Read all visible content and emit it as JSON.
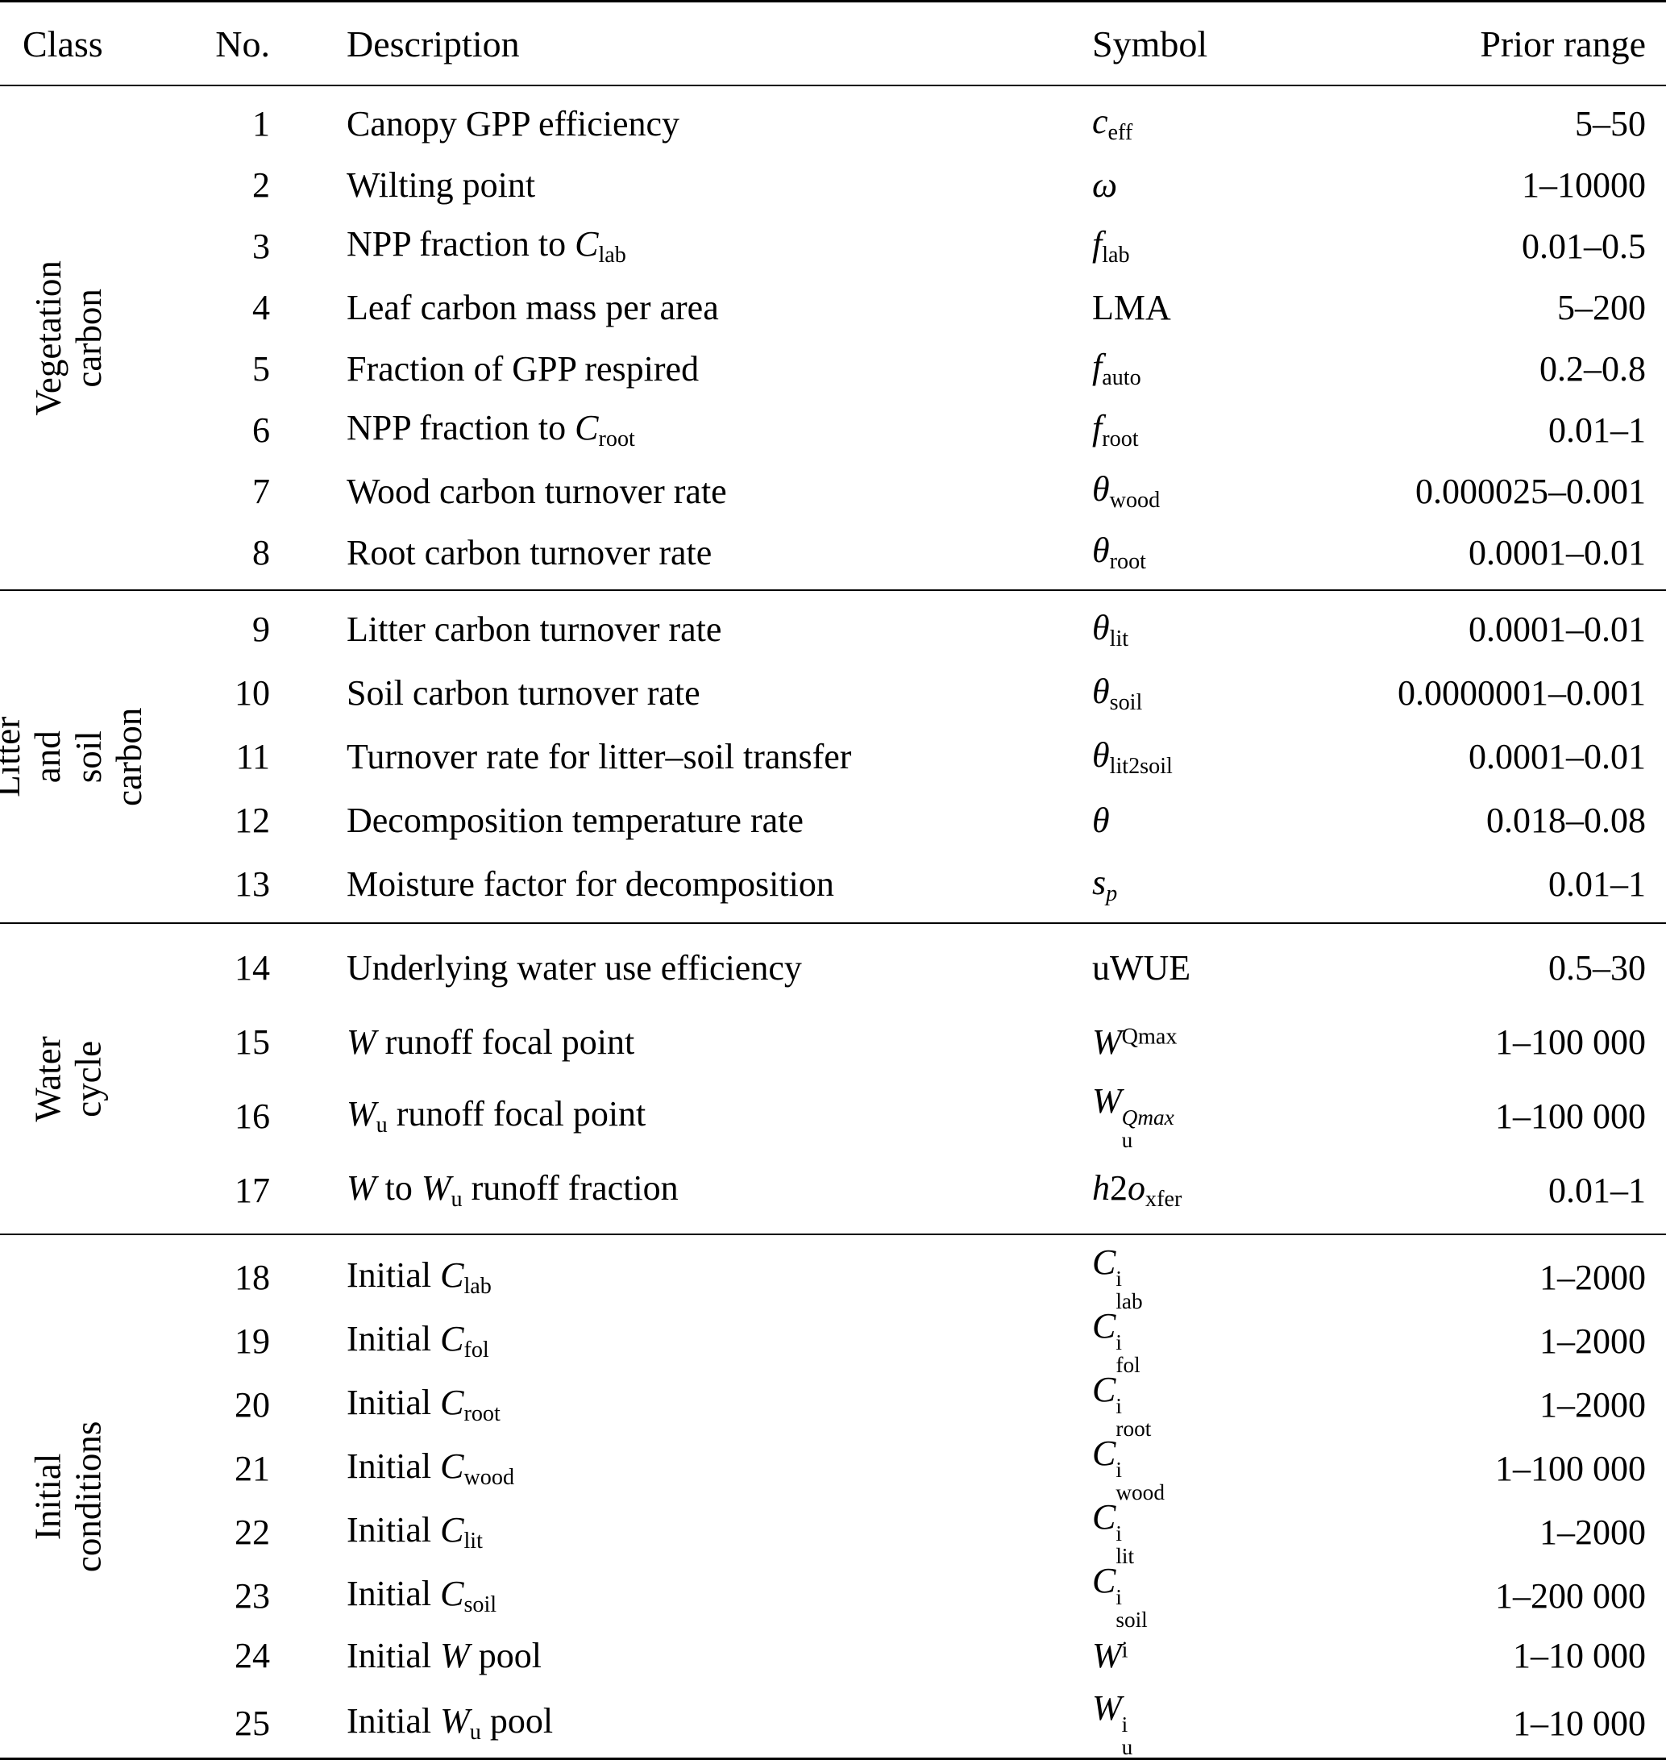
{
  "header": {
    "class": "Class",
    "no": "No.",
    "description": "Description",
    "symbol": "Symbol",
    "prior": "Prior range"
  },
  "groups": [
    {
      "label": "Vegetation carbon",
      "rows": [
        {
          "no": "1",
          "desc": [
            [
              "n",
              "Canopy GPP efficiency"
            ]
          ],
          "sym": [
            [
              "i",
              "c"
            ],
            [
              "sub",
              "eff"
            ]
          ],
          "prior": "5–50"
        },
        {
          "no": "2",
          "desc": [
            [
              "n",
              "Wilting point"
            ]
          ],
          "sym": [
            [
              "i",
              "ω"
            ]
          ],
          "prior": "1–10000"
        },
        {
          "no": "3",
          "desc": [
            [
              "n",
              "NPP fraction to "
            ],
            [
              "i",
              "C"
            ],
            [
              "sub",
              "lab"
            ]
          ],
          "sym": [
            [
              "i",
              "f"
            ],
            [
              "sub",
              "lab"
            ]
          ],
          "prior": "0.01–0.5"
        },
        {
          "no": "4",
          "desc": [
            [
              "n",
              "Leaf carbon mass per area"
            ]
          ],
          "sym": [
            [
              "n",
              "LMA"
            ]
          ],
          "prior": "5–200"
        },
        {
          "no": "5",
          "desc": [
            [
              "n",
              "Fraction of GPP respired"
            ]
          ],
          "sym": [
            [
              "i",
              "f"
            ],
            [
              "sub",
              "auto"
            ]
          ],
          "prior": "0.2–0.8"
        },
        {
          "no": "6",
          "desc": [
            [
              "n",
              "NPP fraction to "
            ],
            [
              "i",
              "C"
            ],
            [
              "sub",
              "root"
            ]
          ],
          "sym": [
            [
              "i",
              "f"
            ],
            [
              "sub",
              "root"
            ]
          ],
          "prior": "0.01–1"
        },
        {
          "no": "7",
          "desc": [
            [
              "n",
              "Wood carbon turnover rate"
            ]
          ],
          "sym": [
            [
              "i",
              "θ"
            ],
            [
              "sub",
              "wood"
            ]
          ],
          "prior": "0.000025–0.001"
        },
        {
          "no": "8",
          "desc": [
            [
              "n",
              "Root carbon turnover rate"
            ]
          ],
          "sym": [
            [
              "i",
              "θ"
            ],
            [
              "sub",
              "root"
            ]
          ],
          "prior": "0.0001–0.01"
        }
      ]
    },
    {
      "label": "Litter and\nsoil carbon",
      "rows": [
        {
          "no": "9",
          "desc": [
            [
              "n",
              "Litter carbon turnover rate"
            ]
          ],
          "sym": [
            [
              "i",
              "θ"
            ],
            [
              "sub",
              "lit"
            ]
          ],
          "prior": "0.0001–0.01"
        },
        {
          "no": "10",
          "desc": [
            [
              "n",
              "Soil carbon turnover rate"
            ]
          ],
          "sym": [
            [
              "i",
              "θ"
            ],
            [
              "sub",
              "soil"
            ]
          ],
          "prior": "0.0000001–0.001"
        },
        {
          "no": "11",
          "desc": [
            [
              "n",
              "Turnover rate for litter–soil transfer"
            ]
          ],
          "sym": [
            [
              "i",
              "θ"
            ],
            [
              "sub",
              "lit2soil"
            ]
          ],
          "prior": "0.0001–0.01"
        },
        {
          "no": "12",
          "desc": [
            [
              "n",
              "Decomposition temperature rate"
            ]
          ],
          "sym": [
            [
              "i",
              "θ"
            ]
          ],
          "prior": "0.018–0.08"
        },
        {
          "no": "13",
          "desc": [
            [
              "n",
              "Moisture factor for decomposition"
            ]
          ],
          "sym": [
            [
              "i",
              "s"
            ],
            [
              "isub",
              "p"
            ]
          ],
          "prior": "0.01–1"
        }
      ]
    },
    {
      "label": "Water cycle",
      "rows": [
        {
          "no": "14",
          "desc": [
            [
              "n",
              "Underlying water use efficiency"
            ]
          ],
          "sym": [
            [
              "n",
              "uWUE"
            ]
          ],
          "prior": "0.5–30"
        },
        {
          "no": "15",
          "desc": [
            [
              "i",
              "W"
            ],
            [
              "n",
              " runoff focal point"
            ]
          ],
          "sym": [
            [
              "i",
              "W"
            ],
            [
              "sup",
              "Qmax"
            ]
          ],
          "prior": "1–100 000"
        },
        {
          "no": "16",
          "desc": [
            [
              "i",
              "W"
            ],
            [
              "sub",
              "u"
            ],
            [
              "n",
              " runoff focal point"
            ]
          ],
          "sym": [
            [
              "i",
              "W"
            ],
            [
              "stki",
              "Qmax",
              "u"
            ]
          ],
          "prior": "1–100 000"
        },
        {
          "no": "17",
          "desc": [
            [
              "i",
              "W"
            ],
            [
              "n",
              " to "
            ],
            [
              "i",
              "W"
            ],
            [
              "sub",
              "u"
            ],
            [
              "n",
              " runoff fraction"
            ]
          ],
          "sym": [
            [
              "i",
              "h"
            ],
            [
              "n",
              "2"
            ],
            [
              "i",
              "o"
            ],
            [
              "sub",
              "xfer"
            ]
          ],
          "prior": "0.01–1"
        }
      ]
    },
    {
      "label": "Initial conditions",
      "rows": [
        {
          "no": "18",
          "desc": [
            [
              "n",
              "Initial "
            ],
            [
              "i",
              "C"
            ],
            [
              "sub",
              "lab"
            ]
          ],
          "sym": [
            [
              "i",
              "C"
            ],
            [
              "stk",
              "i",
              "lab"
            ]
          ],
          "prior": "1–2000"
        },
        {
          "no": "19",
          "desc": [
            [
              "n",
              "Initial "
            ],
            [
              "i",
              "C"
            ],
            [
              "sub",
              "fol"
            ]
          ],
          "sym": [
            [
              "i",
              "C"
            ],
            [
              "stk",
              "i",
              "fol"
            ]
          ],
          "prior": "1–2000"
        },
        {
          "no": "20",
          "desc": [
            [
              "n",
              "Initial "
            ],
            [
              "i",
              "C"
            ],
            [
              "sub",
              "root"
            ]
          ],
          "sym": [
            [
              "i",
              "C"
            ],
            [
              "stk",
              "i",
              "root"
            ]
          ],
          "prior": "1–2000"
        },
        {
          "no": "21",
          "desc": [
            [
              "n",
              "Initial "
            ],
            [
              "i",
              "C"
            ],
            [
              "sub",
              "wood"
            ]
          ],
          "sym": [
            [
              "i",
              "C"
            ],
            [
              "stk",
              "i",
              "wood"
            ]
          ],
          "prior": "1–100 000"
        },
        {
          "no": "22",
          "desc": [
            [
              "n",
              "Initial "
            ],
            [
              "i",
              "C"
            ],
            [
              "sub",
              "lit"
            ]
          ],
          "sym": [
            [
              "i",
              "C"
            ],
            [
              "stk",
              "i",
              "lit"
            ]
          ],
          "prior": "1–2000"
        },
        {
          "no": "23",
          "desc": [
            [
              "n",
              "Initial "
            ],
            [
              "i",
              "C"
            ],
            [
              "sub",
              "soil"
            ]
          ],
          "sym": [
            [
              "i",
              "C"
            ],
            [
              "stk",
              "i",
              "soil"
            ]
          ],
          "prior": "1–200 000"
        },
        {
          "no": "24",
          "desc": [
            [
              "n",
              "Initial "
            ],
            [
              "i",
              "W"
            ],
            [
              "n",
              " pool"
            ]
          ],
          "sym": [
            [
              "i",
              "W"
            ],
            [
              "sup",
              "i"
            ]
          ],
          "prior": "1–10 000"
        },
        {
          "no": "25",
          "desc": [
            [
              "n",
              "Initial "
            ],
            [
              "i",
              "W"
            ],
            [
              "sub",
              "u"
            ],
            [
              "n",
              " pool"
            ]
          ],
          "sym": [
            [
              "i",
              "W"
            ],
            [
              "stk",
              "i",
              "u"
            ]
          ],
          "prior": "1–10 000"
        }
      ]
    }
  ]
}
